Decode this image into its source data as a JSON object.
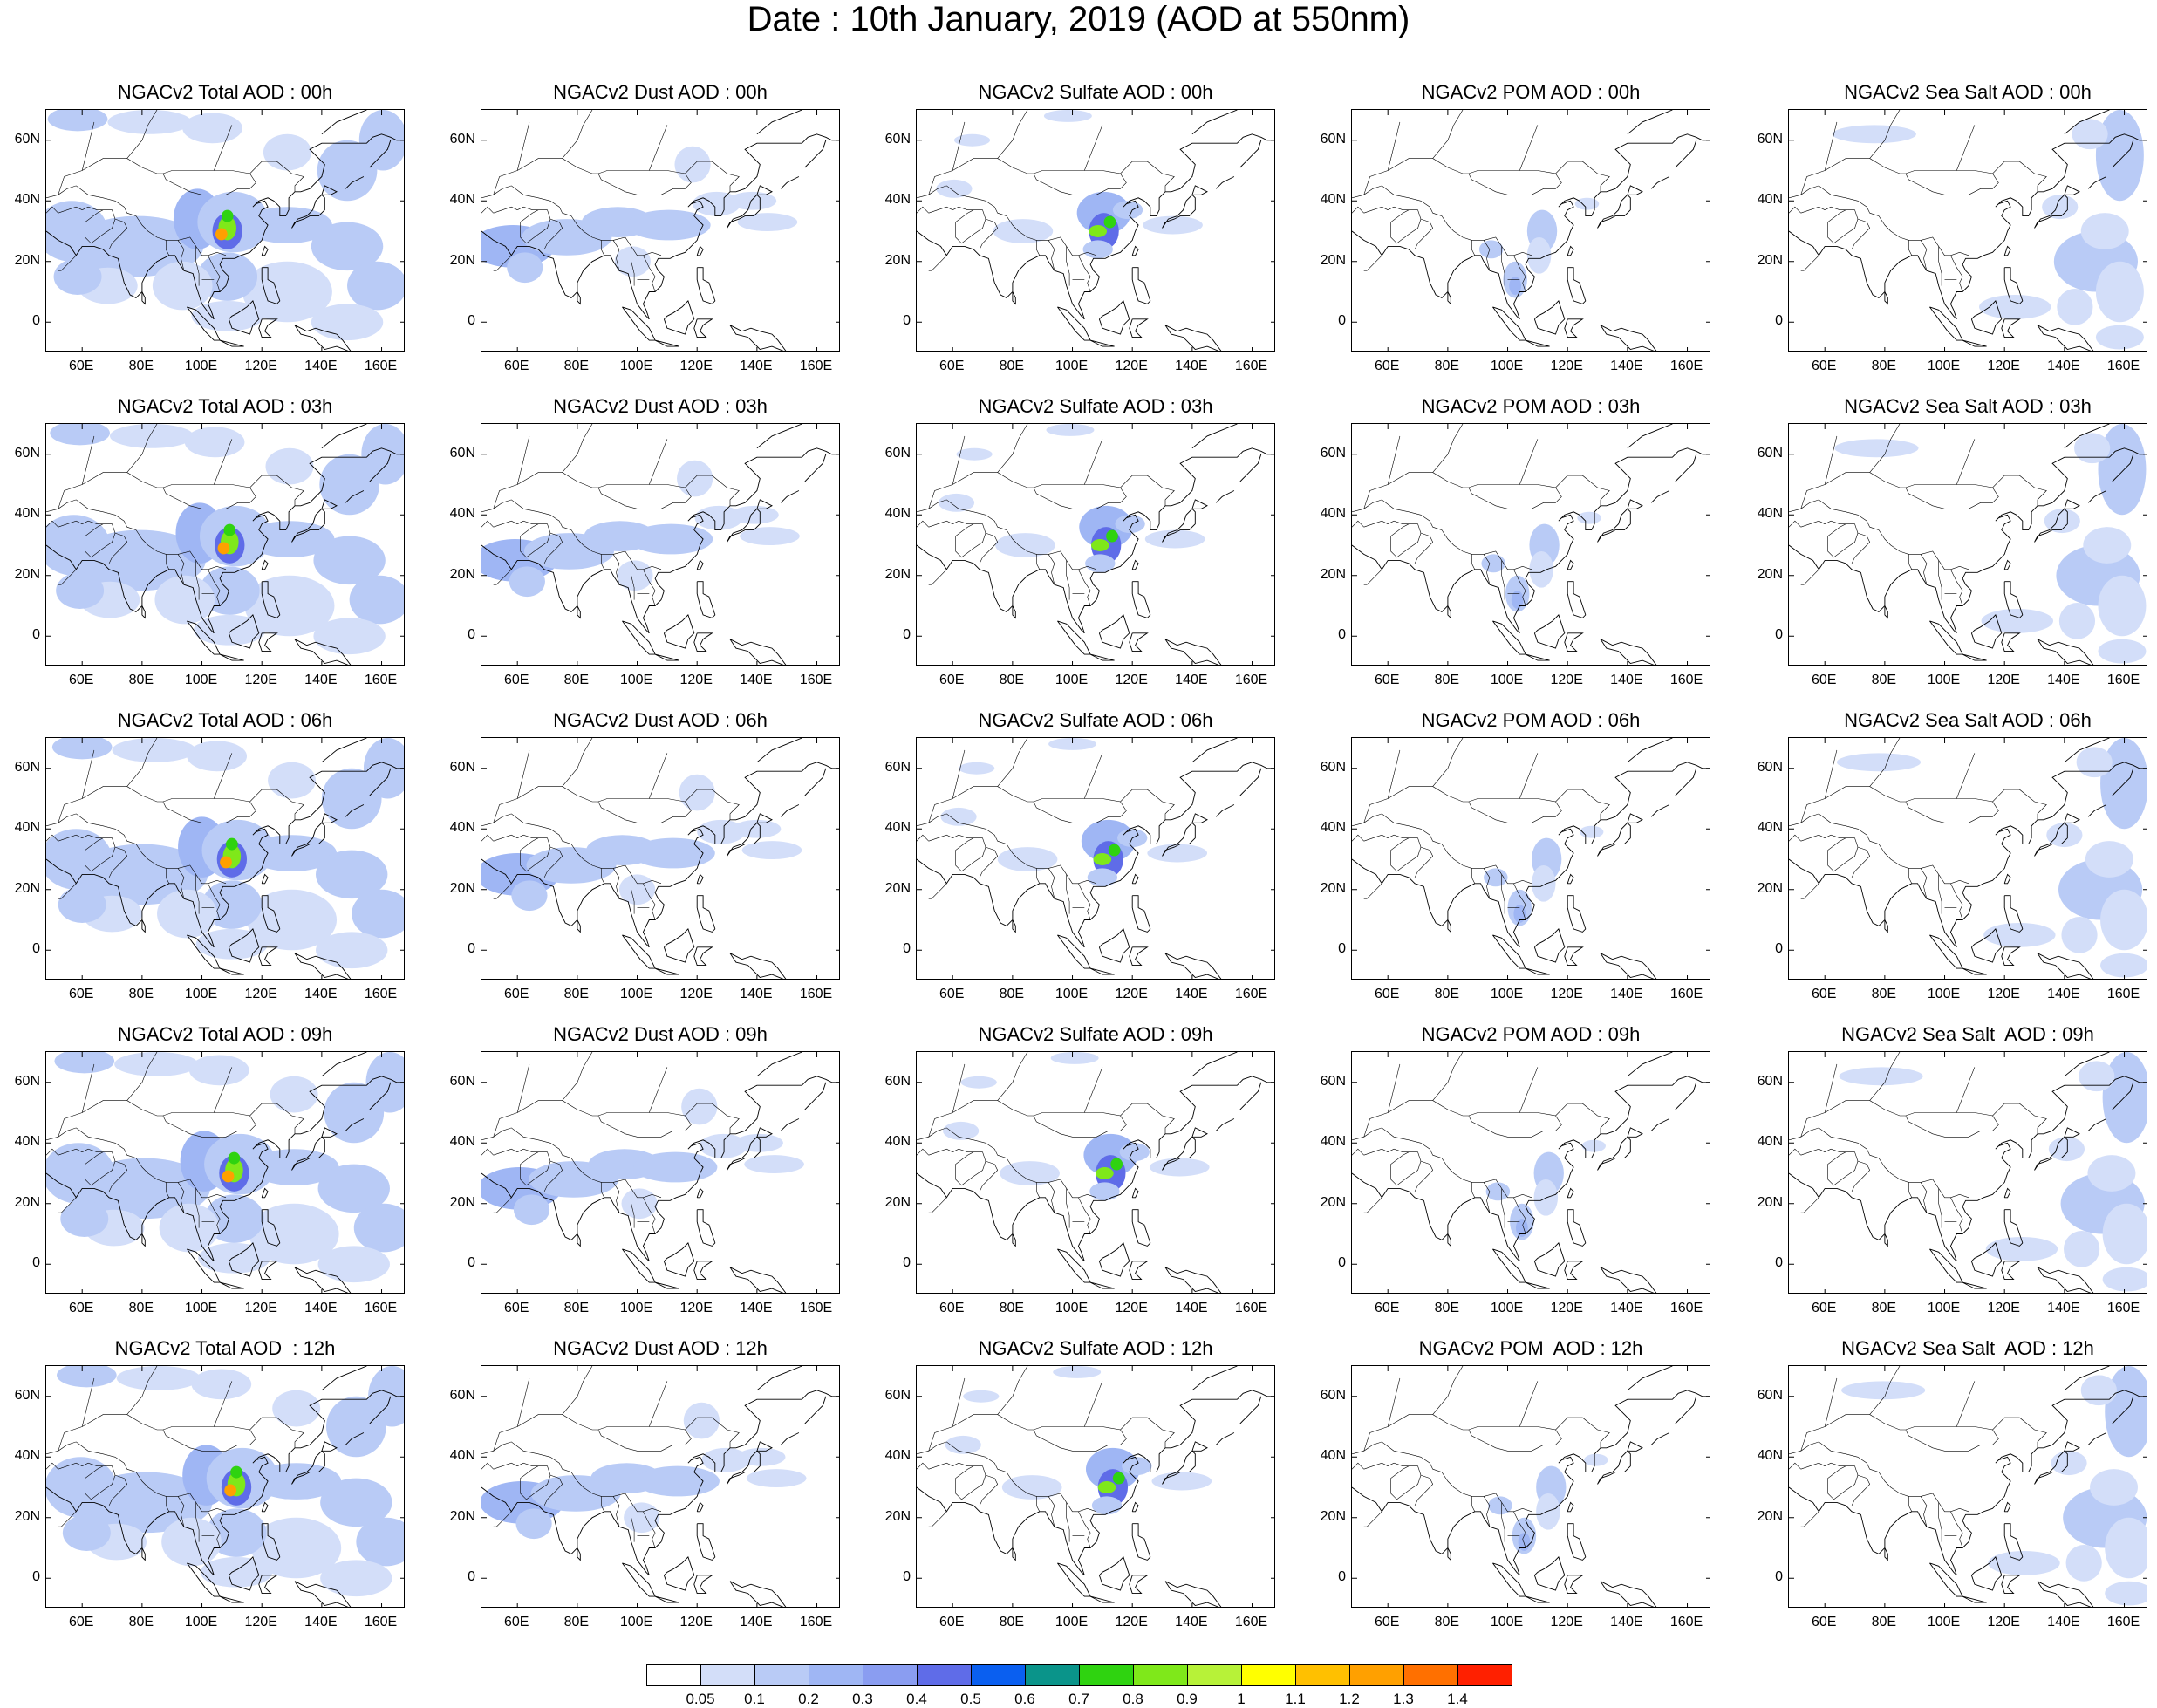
{
  "title": "Date : 10th January, 2019 (AOD at 550nm)",
  "panel_titles": [
    [
      "NGACv2 Total AOD : 00h",
      "NGACv2 Dust AOD : 00h",
      "NGACv2 Sulfate AOD : 00h",
      "NGACv2 POM AOD : 00h",
      "NGACv2 Sea Salt AOD : 00h"
    ],
    [
      "NGACv2 Total AOD : 03h",
      "NGACv2 Dust AOD : 03h",
      "NGACv2 Sulfate AOD : 03h",
      "NGACv2 POM AOD : 03h",
      "NGACv2 Sea Salt AOD : 03h"
    ],
    [
      "NGACv2 Total AOD : 06h",
      "NGACv2 Dust AOD : 06h",
      "NGACv2 Sulfate AOD : 06h",
      "NGACv2 POM AOD : 06h",
      "NGACv2 Sea Salt AOD : 06h"
    ],
    [
      "NGACv2 Total AOD : 09h",
      "NGACv2 Dust AOD : 09h",
      "NGACv2 Sulfate AOD : 09h",
      "NGACv2 POM AOD : 09h",
      "NGACv2 Sea Salt  AOD : 09h"
    ],
    [
      "NGACv2 Total AOD  : 12h",
      "NGACv2 Dust AOD : 12h",
      "NGACv2 Sulfate AOD : 12h",
      "NGACv2 POM  AOD : 12h",
      "NGACv2 Sea Salt  AOD : 12h"
    ]
  ],
  "map": {
    "lon_range": [
      48,
      168
    ],
    "lat_range": [
      -10,
      70
    ],
    "lat_ticks": [
      "60N",
      "40N",
      "20N",
      "0"
    ],
    "lat_values": [
      60,
      40,
      20,
      0
    ],
    "lon_ticks": [
      "60E",
      "80E",
      "100E",
      "120E",
      "140E",
      "160E"
    ],
    "lon_values": [
      60,
      80,
      100,
      120,
      140,
      160
    ]
  },
  "species_patterns": {
    "total": "widespread light blue over Asia and Pacific; hotspot over central China reaching 1.4",
    "dust": "light blue belt from Arabian Sea across India to east China and Pacific",
    "sulfate": "moderate to high values over central/east China, peak around 0.9",
    "pom": "light patches over southern China and Indochina",
    "seasalt": "light blue over northwest Pacific and western Pacific"
  },
  "colorbar": {
    "colors": [
      "#ffffff",
      "#d3def9",
      "#b9cbf6",
      "#9fb6f4",
      "#8a9df1",
      "#5f6ce8",
      "#0a5ff0",
      "#0a948a",
      "#2fd310",
      "#7fe81a",
      "#b7f238",
      "#ffff00",
      "#ffc000",
      "#ffa000",
      "#ff7000",
      "#ff2000"
    ],
    "labels": [
      "0.05",
      "0.1",
      "0.2",
      "0.3",
      "0.4",
      "0.5",
      "0.6",
      "0.7",
      "0.8",
      "0.9",
      "1",
      "1.1",
      "1.2",
      "1.3",
      "1.4"
    ]
  }
}
